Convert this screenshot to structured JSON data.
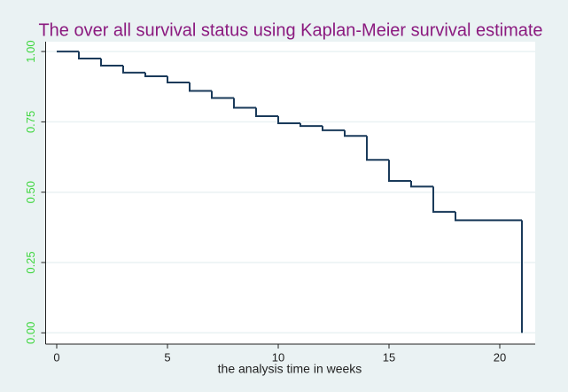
{
  "chart_data": {
    "type": "step",
    "title": "The over all survival status using Kaplan-Meier survival estimate",
    "x_label": "the analysis time in weeks",
    "series": [
      {
        "color": "#1a3a5a",
        "x": [
          0,
          1,
          2,
          3,
          4,
          5,
          6,
          7,
          8,
          9,
          10,
          11,
          12,
          13,
          14,
          15,
          16,
          17,
          18,
          21
        ],
        "values": [
          1.0,
          0.975,
          0.95,
          0.925,
          0.912,
          0.89,
          0.86,
          0.835,
          0.8,
          0.77,
          0.745,
          0.735,
          0.72,
          0.7,
          0.615,
          0.54,
          0.52,
          0.43,
          0.4,
          0
        ]
      }
    ],
    "xlim": [
      -0.5,
      21.6
    ],
    "xticks": [
      0,
      5,
      10,
      15,
      20
    ],
    "ylim": [
      -0.04,
      1.035
    ],
    "yticks": [
      {
        "value": 0,
        "label": "0.00"
      },
      {
        "value": 0.25,
        "label": "0.25"
      },
      {
        "value": 0.5,
        "label": "0.50"
      },
      {
        "value": 0.75,
        "label": "0.75"
      },
      {
        "value": 1,
        "label": "1.00"
      }
    ],
    "grid": true,
    "title_color": "#8b1a7f",
    "tick_label_color": "#3ed63e"
  }
}
